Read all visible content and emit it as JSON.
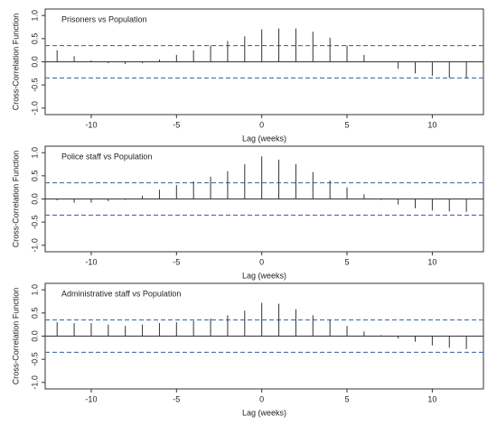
{
  "chart_data": [
    {
      "type": "stem",
      "title": "Prisoners vs Population",
      "x_label": "Lag (weeks)",
      "y_label": "Cross-Correlation Function",
      "x": [
        -12,
        -11,
        -10,
        -9,
        -8,
        -7,
        -6,
        -5,
        -4,
        -3,
        -2,
        -1,
        0,
        1,
        2,
        3,
        4,
        5,
        6,
        7,
        8,
        9,
        10,
        11,
        12
      ],
      "values": [
        0.25,
        0.12,
        0.03,
        -0.03,
        -0.05,
        -0.03,
        0.05,
        0.15,
        0.25,
        0.35,
        0.45,
        0.55,
        0.7,
        0.72,
        0.72,
        0.65,
        0.52,
        0.35,
        0.15,
        0.0,
        -0.15,
        -0.25,
        -0.3,
        -0.35,
        -0.35
      ],
      "color": "#333333",
      "confidence_limits": [
        0.35,
        -0.35
      ],
      "limit_color": "#4a6fa5",
      "xlim": [
        -12.7,
        13
      ],
      "xticks": [
        -10,
        -5,
        0,
        5,
        10
      ],
      "ylim": [
        -1.14,
        1.14
      ],
      "yticks": [
        {
          "value": -1,
          "label": "-1.0"
        },
        {
          "value": -0.5,
          "label": "-0.5"
        },
        {
          "value": 0,
          "label": "0.0"
        },
        {
          "value": 0.5,
          "label": "0.5"
        },
        {
          "value": 1,
          "label": "1.0"
        }
      ]
    },
    {
      "type": "stem",
      "title": "Police staff vs Population",
      "x_label": "Lag (weeks)",
      "y_label": "Cross-Correlation Function",
      "x": [
        -12,
        -11,
        -10,
        -9,
        -8,
        -7,
        -6,
        -5,
        -4,
        -3,
        -2,
        -1,
        0,
        1,
        2,
        3,
        4,
        5,
        6,
        7,
        8,
        9,
        10,
        11,
        12
      ],
      "values": [
        -0.03,
        -0.08,
        -0.08,
        -0.05,
        -0.02,
        0.07,
        0.2,
        0.3,
        0.38,
        0.48,
        0.6,
        0.75,
        0.92,
        0.85,
        0.75,
        0.58,
        0.4,
        0.25,
        0.1,
        -0.02,
        -0.12,
        -0.2,
        -0.25,
        -0.27,
        -0.28
      ],
      "color": "#333333",
      "confidence_limits": [
        0.35,
        -0.35
      ],
      "limit_color": "#4a6fa5",
      "xlim": [
        -12.7,
        13
      ],
      "xticks": [
        -10,
        -5,
        0,
        5,
        10
      ],
      "ylim": [
        -1.14,
        1.14
      ],
      "yticks": [
        {
          "value": -1,
          "label": "-1.0"
        },
        {
          "value": -0.5,
          "label": "-0.5"
        },
        {
          "value": 0,
          "label": "0.0"
        },
        {
          "value": 0.5,
          "label": "0.5"
        },
        {
          "value": 1,
          "label": "1.0"
        }
      ]
    },
    {
      "type": "stem",
      "title": "Administrative staff vs Population",
      "x_label": "Lag (weeks)",
      "y_label": "Cross-Correlation Function",
      "x": [
        -12,
        -11,
        -10,
        -9,
        -8,
        -7,
        -6,
        -5,
        -4,
        -3,
        -2,
        -1,
        0,
        1,
        2,
        3,
        4,
        5,
        6,
        7,
        8,
        9,
        10,
        11,
        12
      ],
      "values": [
        0.3,
        0.28,
        0.28,
        0.25,
        0.22,
        0.25,
        0.28,
        0.3,
        0.33,
        0.38,
        0.45,
        0.55,
        0.72,
        0.7,
        0.58,
        0.45,
        0.35,
        0.22,
        0.1,
        0.02,
        -0.05,
        -0.12,
        -0.2,
        -0.25,
        -0.28
      ],
      "color": "#333333",
      "confidence_limits": [
        0.35,
        -0.35
      ],
      "limit_color": "#4a6fa5",
      "xlim": [
        -12.7,
        13
      ],
      "xticks": [
        -10,
        -5,
        0,
        5,
        10
      ],
      "ylim": [
        -1.14,
        1.14
      ],
      "yticks": [
        {
          "value": -1,
          "label": "-1.0"
        },
        {
          "value": -0.5,
          "label": "-0.5"
        },
        {
          "value": 0,
          "label": "0.0"
        },
        {
          "value": 0.5,
          "label": "0.5"
        },
        {
          "value": 1,
          "label": "1.0"
        }
      ]
    }
  ]
}
